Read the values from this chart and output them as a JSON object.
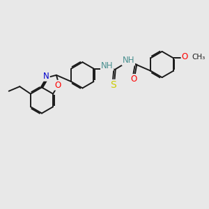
{
  "bg_color": "#e8e8e8",
  "bond_color": "#1a1a1a",
  "bond_width": 1.4,
  "atom_colors": {
    "N": "#0000cc",
    "O": "#ff0000",
    "S": "#cccc00",
    "NH": "#4a9090",
    "C": "#1a1a1a"
  },
  "font_size": 8.5,
  "fig_bg": "#e8e8e8"
}
